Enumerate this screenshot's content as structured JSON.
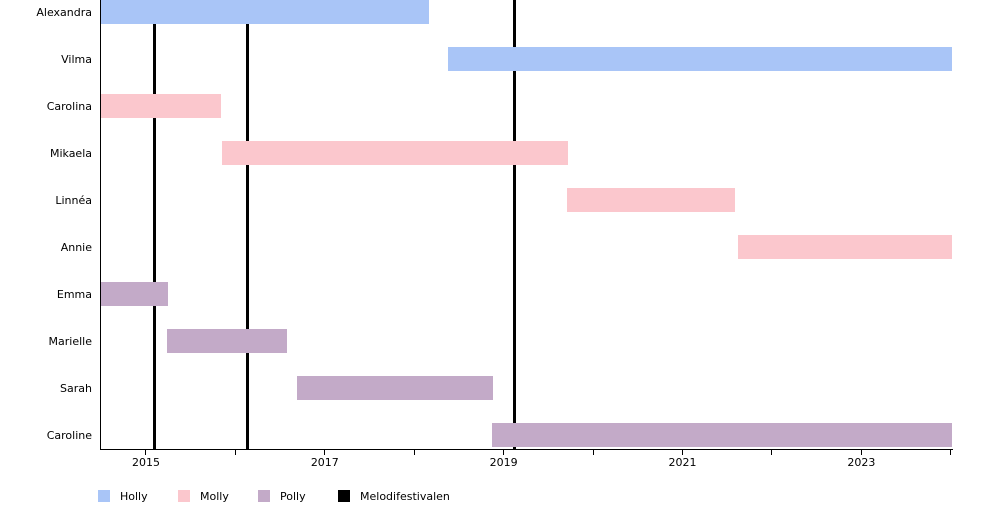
{
  "figure": {
    "background": "#ffffff",
    "axis_color": "#000000",
    "text_color": "#000000"
  },
  "chart_data": {
    "type": "gantt",
    "title": "",
    "xlabel": "",
    "ylabel": "",
    "xlim": [
      2014.486,
      2024.013
    ],
    "grid": false,
    "legend_position": "bottom",
    "x_ticks": [
      {
        "year": 2015,
        "label": "2015"
      },
      {
        "year": 2016,
        "label": ""
      },
      {
        "year": 2017,
        "label": "2017"
      },
      {
        "year": 2018,
        "label": ""
      },
      {
        "year": 2019,
        "label": "2019"
      },
      {
        "year": 2020,
        "label": ""
      },
      {
        "year": 2021,
        "label": "2021"
      },
      {
        "year": 2022,
        "label": ""
      },
      {
        "year": 2023,
        "label": "2023"
      },
      {
        "year": 2024,
        "label": ""
      }
    ],
    "groups": {
      "Holly": "#a9c5f7",
      "Molly": "#fbc7cd",
      "Polly": "#c3aac8"
    },
    "rows": [
      {
        "name": "Alexandra",
        "group": "Holly",
        "start": 2014.486,
        "end": 2018.17
      },
      {
        "name": "Vilma",
        "group": "Holly",
        "start": 2018.38,
        "end": 2024.013
      },
      {
        "name": "Carolina",
        "group": "Molly",
        "start": 2014.486,
        "end": 2015.84
      },
      {
        "name": "Mikaela",
        "group": "Molly",
        "start": 2015.85,
        "end": 2019.72
      },
      {
        "name": "Linnéa",
        "group": "Molly",
        "start": 2019.71,
        "end": 2021.59
      },
      {
        "name": "Annie",
        "group": "Molly",
        "start": 2021.62,
        "end": 2024.013
      },
      {
        "name": "Emma",
        "group": "Polly",
        "start": 2014.486,
        "end": 2015.25
      },
      {
        "name": "Marielle",
        "group": "Polly",
        "start": 2015.24,
        "end": 2016.58
      },
      {
        "name": "Sarah",
        "group": "Polly",
        "start": 2016.69,
        "end": 2018.88
      },
      {
        "name": "Caroline",
        "group": "Polly",
        "start": 2018.87,
        "end": 2024.013
      }
    ],
    "events": {
      "label": "Melodifestivalen",
      "color": "#000000",
      "years": [
        2015.09,
        2016.14,
        2019.12
      ]
    },
    "legend": [
      {
        "label": "Holly",
        "color": "#a9c5f7"
      },
      {
        "label": "Molly",
        "color": "#fbc7cd"
      },
      {
        "label": "Polly",
        "color": "#c3aac8"
      },
      {
        "label": "Melodifestivalen",
        "color": "#000000"
      }
    ]
  }
}
